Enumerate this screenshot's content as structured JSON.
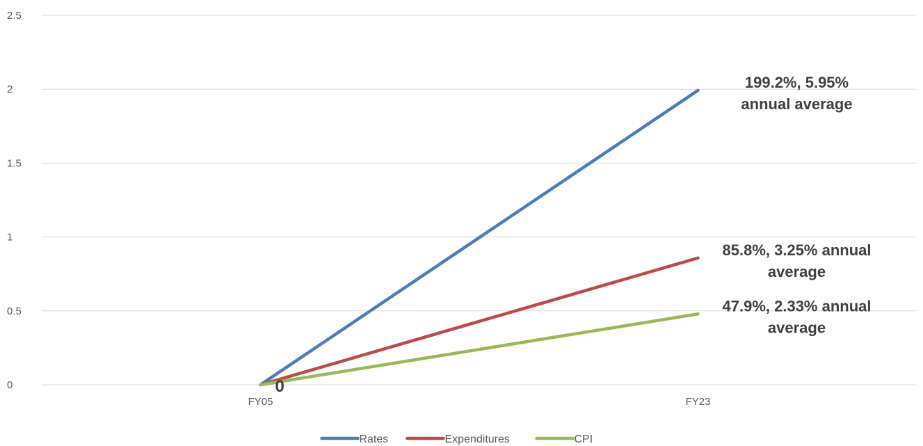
{
  "chart_data": {
    "type": "line",
    "x": [
      "FY05",
      "FY23"
    ],
    "ylim": [
      0,
      2.5
    ],
    "yticks": [
      "0",
      "0.5",
      "1",
      "1.5",
      "2",
      "2.5"
    ],
    "grid": true,
    "legend_position": "bottom",
    "series": [
      {
        "name": "Rates",
        "color": "#4a7ebb",
        "values": [
          0,
          1.992
        ],
        "label_lines": [
          "199.2%, 5.95%",
          "annual average"
        ]
      },
      {
        "name": "Expenditures",
        "color": "#be4b48",
        "values": [
          0,
          0.858
        ],
        "label_lines": [
          "85.8%, 3.25% annual",
          "average"
        ]
      },
      {
        "name": "CPI",
        "color": "#98b954",
        "values": [
          0,
          0.479
        ],
        "label_lines": [
          "47.9%, 2.33% annual",
          "average"
        ]
      }
    ],
    "start_label": "0"
  }
}
